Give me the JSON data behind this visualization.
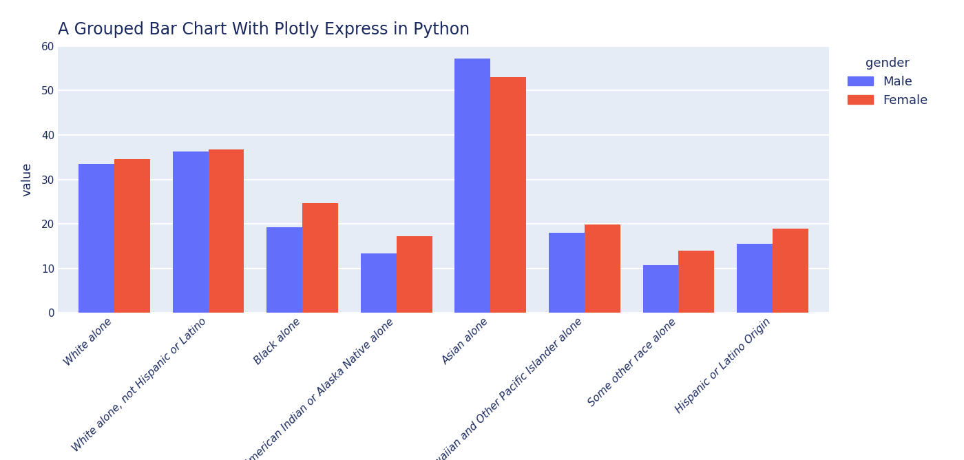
{
  "title": "A Grouped Bar Chart With Plotly Express in Python",
  "ylabel": "value",
  "categories": [
    "White alone",
    "White alone, not Hispanic or Latino",
    "Black alone",
    "American Indian or Alaska Native alone",
    "Asian alone",
    "Native Hawaiian and Other Pacific Islander alone",
    "Some other race alone",
    "Hispanic or Latino Origin"
  ],
  "male_values": [
    33.5,
    36.2,
    19.2,
    13.3,
    57.2,
    18.0,
    10.8,
    15.5
  ],
  "female_values": [
    34.5,
    36.7,
    24.6,
    17.2,
    53.0,
    19.8,
    14.0,
    19.0
  ],
  "male_color": "#636EFA",
  "female_color": "#EF553B",
  "plot_bg_color": "#E5ECF6",
  "outer_bg_color": "#ffffff",
  "title_color": "#1b2a5e",
  "legend_title": "gender",
  "legend_male": "Male",
  "legend_female": "Female",
  "ylim": [
    0,
    60
  ],
  "yticks": [
    0,
    10,
    20,
    30,
    40,
    50,
    60
  ],
  "bar_width": 0.38,
  "title_fontsize": 17,
  "axis_label_fontsize": 13,
  "tick_fontsize": 11,
  "legend_fontsize": 13,
  "tick_label_color": "#1b2a5e",
  "grid_color": "#ffffff",
  "tick_rotation": 45
}
